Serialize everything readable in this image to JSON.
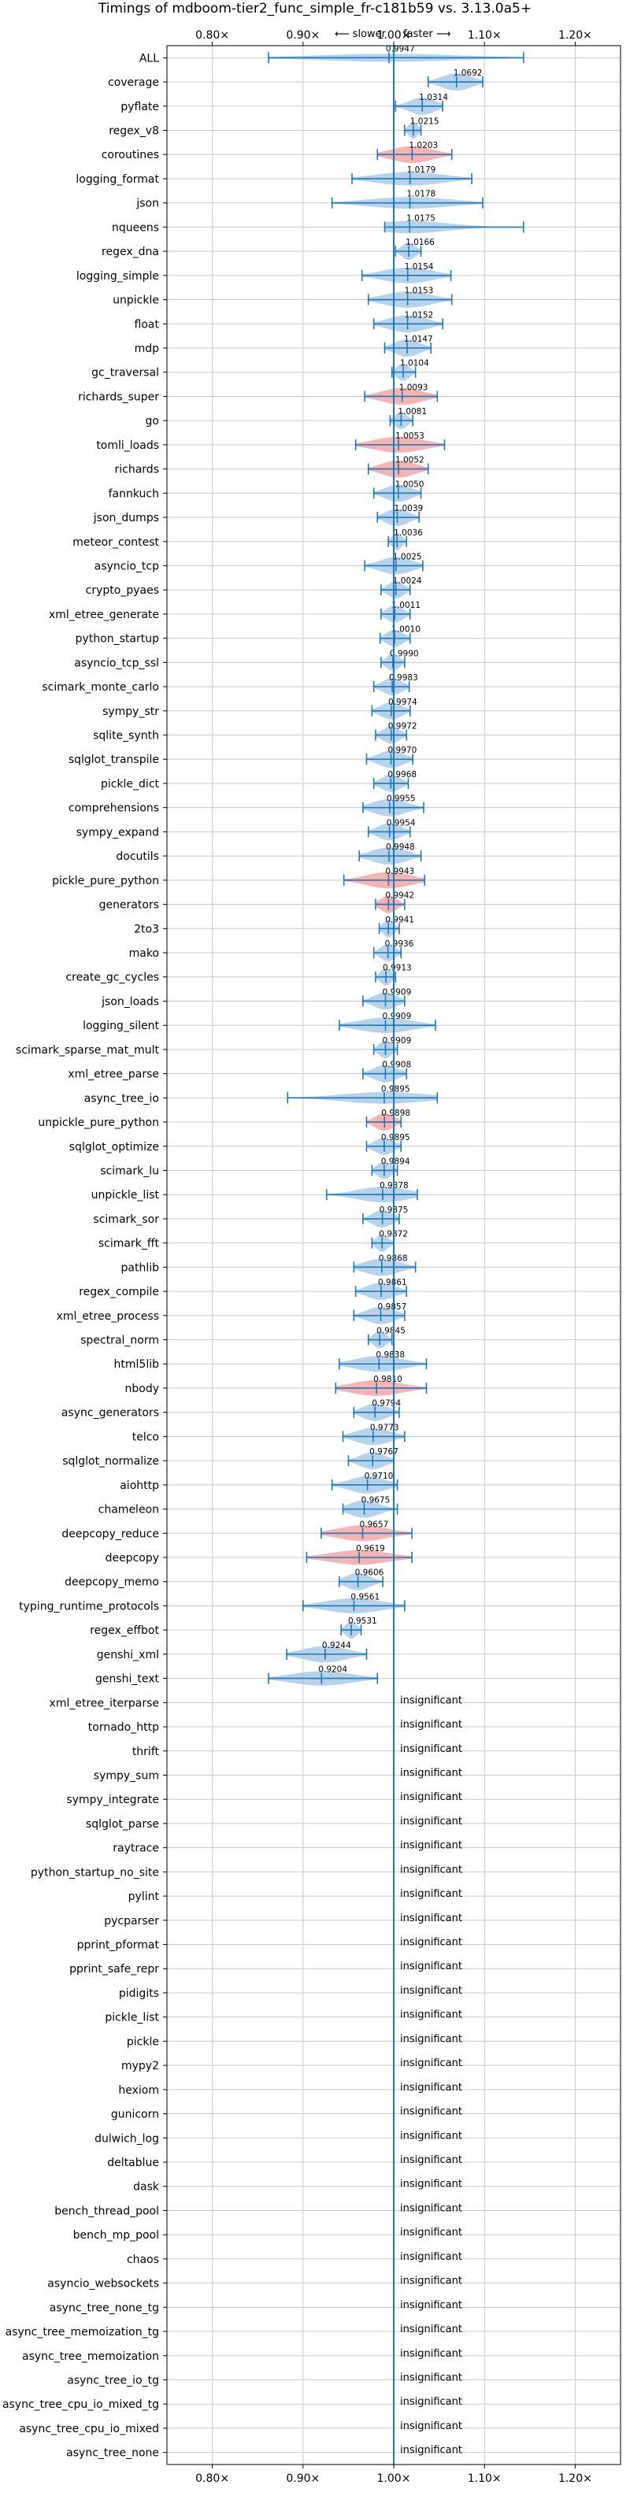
{
  "chart_data": {
    "type": "violin",
    "title": "Timings of mdboom-tier2_func_simple_fr-c181b59 vs. 3.13.0a5+",
    "xlim": [
      0.75,
      1.25
    ],
    "x_ticks": [
      0.8,
      0.9,
      1.0,
      1.1,
      1.2
    ],
    "x_tick_labels": [
      "0.80×",
      "0.90×",
      "1.00×",
      "1.10×",
      "1.20×"
    ],
    "slower_label": "⟵ slower",
    "faster_label": "faster ⟶",
    "insignificant_label": "insignificant",
    "grid": true,
    "colors": {
      "improved": "#a9cbe8",
      "regressed": "#f4a6a6",
      "line": "#1f77b4",
      "grid": "#c8c8c8"
    },
    "benchmarks": [
      {
        "name": "ALL",
        "value": 0.9947,
        "label": "0.9947",
        "lo": 0.862,
        "hi": 1.143
      },
      {
        "name": "coverage",
        "value": 1.0692,
        "label": "1.0692",
        "lo": 1.038,
        "hi": 1.098
      },
      {
        "name": "pyflate",
        "value": 1.0314,
        "label": "1.0314",
        "lo": 1.002,
        "hi": 1.054
      },
      {
        "name": "regex_v8",
        "value": 1.0215,
        "label": "1.0215",
        "lo": 1.012,
        "hi": 1.03
      },
      {
        "name": "coroutines",
        "value": 1.0203,
        "label": "1.0203",
        "lo": 0.982,
        "hi": 1.064
      },
      {
        "name": "logging_format",
        "value": 1.0179,
        "label": "1.0179",
        "lo": 0.954,
        "hi": 1.086
      },
      {
        "name": "json",
        "value": 1.0178,
        "label": "1.0178",
        "lo": 0.932,
        "hi": 1.098
      },
      {
        "name": "nqueens",
        "value": 1.0175,
        "label": "1.0175",
        "lo": 0.99,
        "hi": 1.143
      },
      {
        "name": "regex_dna",
        "value": 1.0166,
        "label": "1.0166",
        "lo": 1.002,
        "hi": 1.03
      },
      {
        "name": "logging_simple",
        "value": 1.0154,
        "label": "1.0154",
        "lo": 0.965,
        "hi": 1.063
      },
      {
        "name": "unpickle",
        "value": 1.0153,
        "label": "1.0153",
        "lo": 0.972,
        "hi": 1.064
      },
      {
        "name": "float",
        "value": 1.0152,
        "label": "1.0152",
        "lo": 0.978,
        "hi": 1.054
      },
      {
        "name": "mdp",
        "value": 1.0147,
        "label": "1.0147",
        "lo": 0.99,
        "hi": 1.041
      },
      {
        "name": "gc_traversal",
        "value": 1.0104,
        "label": "1.0104",
        "lo": 0.998,
        "hi": 1.024
      },
      {
        "name": "richards_super",
        "value": 1.0093,
        "label": "1.0093",
        "lo": 0.968,
        "hi": 1.048
      },
      {
        "name": "go",
        "value": 1.0081,
        "label": "1.0081",
        "lo": 0.996,
        "hi": 1.021
      },
      {
        "name": "tomli_loads",
        "value": 1.0053,
        "label": "1.0053",
        "lo": 0.958,
        "hi": 1.056
      },
      {
        "name": "richards",
        "value": 1.0052,
        "label": "1.0052",
        "lo": 0.972,
        "hi": 1.038
      },
      {
        "name": "fannkuch",
        "value": 1.005,
        "label": "1.0050",
        "lo": 0.978,
        "hi": 1.03
      },
      {
        "name": "json_dumps",
        "value": 1.0039,
        "label": "1.0039",
        "lo": 0.982,
        "hi": 1.028
      },
      {
        "name": "meteor_contest",
        "value": 1.0036,
        "label": "1.0036",
        "lo": 0.994,
        "hi": 1.014
      },
      {
        "name": "asyncio_tcp",
        "value": 1.0025,
        "label": "1.0025",
        "lo": 0.968,
        "hi": 1.032
      },
      {
        "name": "crypto_pyaes",
        "value": 1.0024,
        "label": "1.0024",
        "lo": 0.986,
        "hi": 1.018
      },
      {
        "name": "xml_etree_generate",
        "value": 1.0011,
        "label": "1.0011",
        "lo": 0.986,
        "hi": 1.018
      },
      {
        "name": "python_startup",
        "value": 1.001,
        "label": "1.0010",
        "lo": 0.985,
        "hi": 1.018
      },
      {
        "name": "asyncio_tcp_ssl",
        "value": 0.999,
        "label": "0.9990",
        "lo": 0.986,
        "hi": 1.012
      },
      {
        "name": "scimark_monte_carlo",
        "value": 0.9983,
        "label": "0.9983",
        "lo": 0.978,
        "hi": 1.017
      },
      {
        "name": "sympy_str",
        "value": 0.9974,
        "label": "0.9974",
        "lo": 0.976,
        "hi": 1.018
      },
      {
        "name": "sqlite_synth",
        "value": 0.9972,
        "label": "0.9972",
        "lo": 0.98,
        "hi": 1.014
      },
      {
        "name": "sqlglot_transpile",
        "value": 0.997,
        "label": "0.9970",
        "lo": 0.97,
        "hi": 1.021
      },
      {
        "name": "pickle_dict",
        "value": 0.9968,
        "label": "0.9968",
        "lo": 0.978,
        "hi": 1.016
      },
      {
        "name": "comprehensions",
        "value": 0.9955,
        "label": "0.9955",
        "lo": 0.966,
        "hi": 1.033
      },
      {
        "name": "sympy_expand",
        "value": 0.9954,
        "label": "0.9954",
        "lo": 0.972,
        "hi": 1.018
      },
      {
        "name": "docutils",
        "value": 0.9948,
        "label": "0.9948",
        "lo": 0.962,
        "hi": 1.03
      },
      {
        "name": "pickle_pure_python",
        "value": 0.9943,
        "label": "0.9943",
        "lo": 0.945,
        "hi": 1.034
      },
      {
        "name": "generators",
        "value": 0.9942,
        "label": "0.9942",
        "lo": 0.98,
        "hi": 1.012
      },
      {
        "name": "2to3",
        "value": 0.9941,
        "label": "0.9941",
        "lo": 0.984,
        "hi": 1.006
      },
      {
        "name": "mako",
        "value": 0.9936,
        "label": "0.9936",
        "lo": 0.978,
        "hi": 1.008
      },
      {
        "name": "create_gc_cycles",
        "value": 0.9913,
        "label": "0.9913",
        "lo": 0.98,
        "hi": 1.002
      },
      {
        "name": "json_loads",
        "value": 0.9909,
        "label": "0.9909",
        "lo": 0.966,
        "hi": 1.012
      },
      {
        "name": "logging_silent",
        "value": 0.9909,
        "label": "0.9909",
        "lo": 0.94,
        "hi": 1.046
      },
      {
        "name": "scimark_sparse_mat_mult",
        "value": 0.9909,
        "label": "0.9909",
        "lo": 0.978,
        "hi": 1.004
      },
      {
        "name": "xml_etree_parse",
        "value": 0.9908,
        "label": "0.9908",
        "lo": 0.966,
        "hi": 1.014
      },
      {
        "name": "async_tree_io",
        "value": 0.9895,
        "label": "0.9895",
        "lo": 0.883,
        "hi": 1.048
      },
      {
        "name": "unpickle_pure_python",
        "value": 0.9898,
        "label": "0.9898",
        "lo": 0.97,
        "hi": 1.008
      },
      {
        "name": "sqlglot_optimize",
        "value": 0.9895,
        "label": "0.9895",
        "lo": 0.97,
        "hi": 1.008
      },
      {
        "name": "scimark_lu",
        "value": 0.9894,
        "label": "0.9894",
        "lo": 0.976,
        "hi": 1.004
      },
      {
        "name": "unpickle_list",
        "value": 0.9878,
        "label": "0.9878",
        "lo": 0.926,
        "hi": 1.026
      },
      {
        "name": "scimark_sor",
        "value": 0.9875,
        "label": "0.9875",
        "lo": 0.966,
        "hi": 1.006
      },
      {
        "name": "scimark_fft",
        "value": 0.9872,
        "label": "0.9872",
        "lo": 0.976,
        "hi": 1.0
      },
      {
        "name": "pathlib",
        "value": 0.9868,
        "label": "0.9868",
        "lo": 0.956,
        "hi": 1.024
      },
      {
        "name": "regex_compile",
        "value": 0.9861,
        "label": "0.9861",
        "lo": 0.958,
        "hi": 1.014
      },
      {
        "name": "xml_etree_process",
        "value": 0.9857,
        "label": "0.9857",
        "lo": 0.956,
        "hi": 1.012
      },
      {
        "name": "spectral_norm",
        "value": 0.9845,
        "label": "0.9845",
        "lo": 0.972,
        "hi": 0.998
      },
      {
        "name": "html5lib",
        "value": 0.9838,
        "label": "0.9838",
        "lo": 0.94,
        "hi": 1.036
      },
      {
        "name": "nbody",
        "value": 0.981,
        "label": "0.9810",
        "lo": 0.936,
        "hi": 1.036
      },
      {
        "name": "async_generators",
        "value": 0.9794,
        "label": "0.9794",
        "lo": 0.956,
        "hi": 1.006
      },
      {
        "name": "telco",
        "value": 0.9773,
        "label": "0.9773",
        "lo": 0.944,
        "hi": 1.012
      },
      {
        "name": "sqlglot_normalize",
        "value": 0.9767,
        "label": "0.9767",
        "lo": 0.95,
        "hi": 1.0
      },
      {
        "name": "aiohttp",
        "value": 0.971,
        "label": "0.9710",
        "lo": 0.932,
        "hi": 1.004
      },
      {
        "name": "chameleon",
        "value": 0.9675,
        "label": "0.9675",
        "lo": 0.944,
        "hi": 1.004
      },
      {
        "name": "deepcopy_reduce",
        "value": 0.9657,
        "label": "0.9657",
        "lo": 0.92,
        "hi": 1.02
      },
      {
        "name": "deepcopy",
        "value": 0.9619,
        "label": "0.9619",
        "lo": 0.904,
        "hi": 1.02
      },
      {
        "name": "deepcopy_memo",
        "value": 0.9606,
        "label": "0.9606",
        "lo": 0.94,
        "hi": 0.988
      },
      {
        "name": "typing_runtime_protocols",
        "value": 0.9561,
        "label": "0.9561",
        "lo": 0.9,
        "hi": 1.012
      },
      {
        "name": "regex_effbot",
        "value": 0.9531,
        "label": "0.9531",
        "lo": 0.942,
        "hi": 0.964
      },
      {
        "name": "genshi_xml",
        "value": 0.9244,
        "label": "0.9244",
        "lo": 0.882,
        "hi": 0.97
      },
      {
        "name": "genshi_text",
        "value": 0.9204,
        "label": "0.9204",
        "lo": 0.862,
        "hi": 0.982
      },
      {
        "name": "xml_etree_iterparse",
        "value": null
      },
      {
        "name": "tornado_http",
        "value": null
      },
      {
        "name": "thrift",
        "value": null
      },
      {
        "name": "sympy_sum",
        "value": null
      },
      {
        "name": "sympy_integrate",
        "value": null
      },
      {
        "name": "sqlglot_parse",
        "value": null
      },
      {
        "name": "raytrace",
        "value": null
      },
      {
        "name": "python_startup_no_site",
        "value": null
      },
      {
        "name": "pylint",
        "value": null
      },
      {
        "name": "pycparser",
        "value": null
      },
      {
        "name": "pprint_pformat",
        "value": null
      },
      {
        "name": "pprint_safe_repr",
        "value": null
      },
      {
        "name": "pidigits",
        "value": null
      },
      {
        "name": "pickle_list",
        "value": null
      },
      {
        "name": "pickle",
        "value": null
      },
      {
        "name": "mypy2",
        "value": null
      },
      {
        "name": "hexiom",
        "value": null
      },
      {
        "name": "gunicorn",
        "value": null
      },
      {
        "name": "dulwich_log",
        "value": null
      },
      {
        "name": "deltablue",
        "value": null
      },
      {
        "name": "dask",
        "value": null
      },
      {
        "name": "bench_thread_pool",
        "value": null
      },
      {
        "name": "bench_mp_pool",
        "value": null
      },
      {
        "name": "chaos",
        "value": null
      },
      {
        "name": "asyncio_websockets",
        "value": null
      },
      {
        "name": "async_tree_none_tg",
        "value": null
      },
      {
        "name": "async_tree_memoization_tg",
        "value": null
      },
      {
        "name": "async_tree_memoization",
        "value": null
      },
      {
        "name": "async_tree_io_tg",
        "value": null
      },
      {
        "name": "async_tree_cpu_io_mixed_tg",
        "value": null
      },
      {
        "name": "async_tree_cpu_io_mixed",
        "value": null
      },
      {
        "name": "async_tree_none",
        "value": null
      }
    ],
    "regressed_highlight": [
      "coroutines",
      "richards_super",
      "tomli_loads",
      "richards",
      "pickle_pure_python",
      "unpickle_pure_python",
      "nbody",
      "deepcopy_reduce",
      "deepcopy",
      "generators"
    ]
  }
}
